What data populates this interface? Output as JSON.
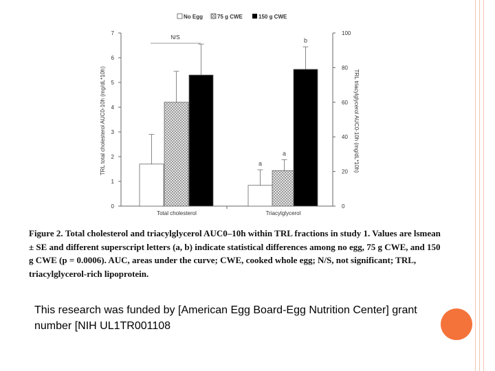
{
  "colors": {
    "accent_circle": "#f4733a",
    "deco_line": "#f2c6b2",
    "no_egg": "#ffffff",
    "cwe_75": "#c8c8c8",
    "cwe_150": "#000000"
  },
  "chart_data": {
    "type": "bar",
    "categories": [
      "Total cholesterol",
      "Triacylglycerol"
    ],
    "series": [
      {
        "name": "No Egg",
        "values": [
          1.7,
          12
        ],
        "errors": [
          1.2,
          9
        ]
      },
      {
        "name": "75 g CWE",
        "values": [
          4.2,
          20.5
        ],
        "errors": [
          1.25,
          6.3
        ]
      },
      {
        "name": "150 g CWE",
        "values": [
          5.3,
          79
        ],
        "errors": [
          1.25,
          13
        ]
      }
    ],
    "left_axis": {
      "label": "TRL total cholesterol AUC0-10h (mg/dL*10h)",
      "ylim": [
        0,
        7
      ],
      "ticks": [
        "0",
        "1",
        "2",
        "3",
        "4",
        "5",
        "6",
        "7"
      ]
    },
    "right_axis": {
      "label": "TRL triacylglycerol AUC0-10h (mg/dL*10h)",
      "ylim": [
        0,
        100
      ],
      "ticks": [
        "0",
        "20",
        "40",
        "60",
        "80",
        "100"
      ]
    },
    "annotations": [
      {
        "text": "N/S",
        "category": "Total cholesterol"
      },
      {
        "text": "a",
        "category": "Triacylglycerol",
        "series": "No Egg"
      },
      {
        "text": "a",
        "category": "Triacylglycerol",
        "series": "75 g CWE"
      },
      {
        "text": "b",
        "category": "Triacylglycerol",
        "series": "150 g CWE"
      }
    ],
    "legend_position": "top-center"
  },
  "caption": {
    "lead": "Figure 2.",
    "text": "Total cholesterol and triacylglycerol AUC0–10h within TRL fractions in study 1. Values are lsmean ± SE and different superscript letters (a, b) indicate statistical differences among no egg, 75 g CWE, and 150 g CWE (p = 0.0006). AUC, areas under the curve; CWE, cooked whole egg; N/S, not significant; TRL, triacylglycerol-rich lipoprotein."
  },
  "credit": "This research was funded by [American Egg Board-Egg Nutrition Center] grant number [NIH UL1TR001108"
}
